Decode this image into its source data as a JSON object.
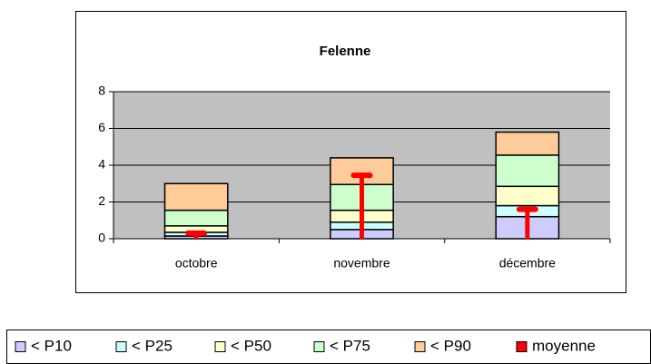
{
  "chart_data": {
    "type": "bar",
    "stacked": true,
    "title": "Felenne",
    "categories": [
      "octobre",
      "novembre",
      "décembre"
    ],
    "series": [
      {
        "name": "< P10",
        "color": "#ccccff",
        "values": [
          0.15,
          0.5,
          1.2
        ]
      },
      {
        "name": "< P25",
        "color": "#ccffff",
        "values": [
          0.2,
          0.4,
          0.6
        ]
      },
      {
        "name": "< P50",
        "color": "#ffffcc",
        "values": [
          0.35,
          0.65,
          1.05
        ]
      },
      {
        "name": "< P75",
        "color": "#ccffcc",
        "values": [
          0.85,
          1.4,
          1.7
        ]
      },
      {
        "name": "< P90",
        "color": "#ffcc99",
        "values": [
          1.45,
          1.45,
          1.25
        ]
      },
      {
        "name": "moyenne",
        "type": "mean-marker",
        "color": "#ff0000",
        "values": [
          0.3,
          3.45,
          1.6
        ]
      }
    ],
    "ylim": [
      0,
      8
    ],
    "yticks": [
      0,
      2,
      4,
      6,
      8
    ],
    "grid": true,
    "legend": "bottom"
  }
}
